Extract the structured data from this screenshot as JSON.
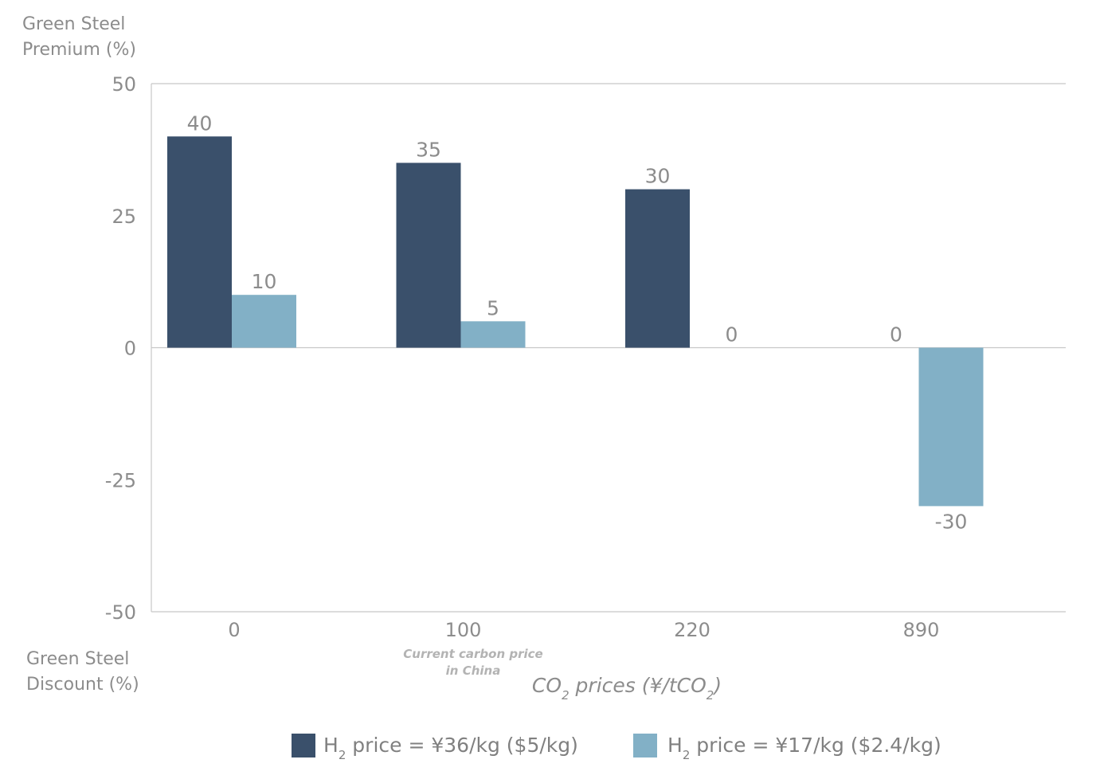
{
  "colors": {
    "series1": "#3a506b",
    "series2": "#82b0c6",
    "axis": "#bfbfbf",
    "text": "#8c8c8c"
  },
  "labels": {
    "premium_line1": "Green Steel",
    "premium_line2": "Premium (%)",
    "discount_line1": "Green Steel",
    "discount_line2": "Discount (%)",
    "note_line1": "Current carbon price",
    "note_line2": "in China"
  },
  "chart_data": {
    "type": "bar",
    "categories": [
      "0",
      "100",
      "220",
      "890"
    ],
    "series": [
      {
        "name_main": "H",
        "name_sub": "2",
        "name_rest": " price = ¥36/kg ($5/kg)",
        "values": [
          40,
          35,
          30,
          0
        ]
      },
      {
        "name_main": "H",
        "name_sub": "2",
        "name_rest": " price = ¥17/kg ($2.4/kg)",
        "values": [
          10,
          5,
          0,
          -30
        ]
      }
    ],
    "xlabel_parts": [
      "CO",
      "2",
      " prices (¥/tCO",
      "2",
      ")"
    ],
    "yticks": [
      "50",
      "25",
      "0",
      "-25",
      "-50"
    ],
    "ylim": [
      -50,
      50
    ],
    "grid": false,
    "legend_position": "bottom"
  }
}
